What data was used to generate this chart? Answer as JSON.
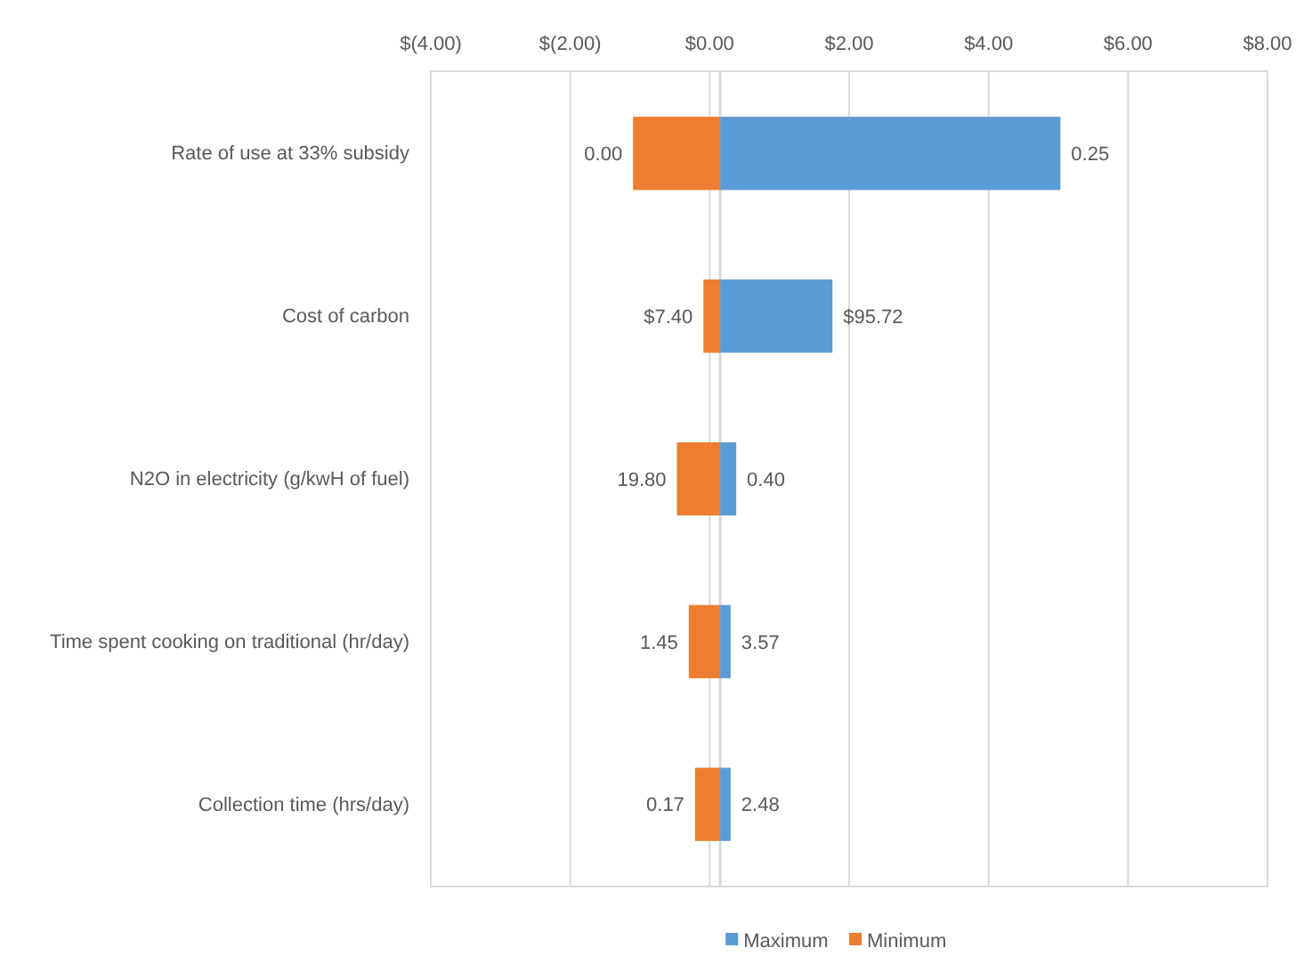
{
  "chart_data": {
    "type": "bar",
    "orientation": "horizontal",
    "categories": [
      "Rate of use at 33% subsidy",
      "Cost of carbon",
      "N2O in electricity (g/kwH of fuel)",
      "Time spent cooking on traditional (hr/day)",
      "Collection time (hrs/day)"
    ],
    "series": [
      {
        "name": "Maximum",
        "color": "#5b9bd5",
        "values": [
          4.88,
          1.61,
          0.23,
          0.15,
          0.15
        ],
        "base": [
          0.15,
          0.15,
          0.15,
          0.15,
          0.15
        ]
      },
      {
        "name": "Minimum",
        "color": "#ed7d31",
        "values": [
          -1.25,
          -0.24,
          -0.62,
          -0.45,
          -0.36
        ],
        "base": [
          0.15,
          0.15,
          0.15,
          0.15,
          0.15
        ]
      }
    ],
    "annotations": [
      {
        "text": "0.25",
        "x": 5.03,
        "y": "Rate of use at 33% subsidy"
      },
      {
        "text": "$95.72",
        "x": 1.76,
        "y": "Cost of carbon"
      },
      {
        "text": "0.40",
        "x": 0.38,
        "y": "N2O in electricity (g/kwH of fuel)"
      },
      {
        "text": "3.57",
        "x": 0.3,
        "y": "Time spent cooking on traditional (hr/day)"
      },
      {
        "text": "2.48",
        "x": 0.3,
        "y": "Collection time (hrs/day)"
      },
      {
        "text": "0.00",
        "x": -1.1,
        "y": "Rate of use at 33% subsidy"
      },
      {
        "text": "$7.40",
        "x": -0.09,
        "y": "Cost of carbon"
      },
      {
        "text": "19.80",
        "x": -0.47,
        "y": "N2O in electricity (g/kwH of fuel)"
      },
      {
        "text": "1.45",
        "x": -0.3,
        "y": "Time spent cooking on traditional (hr/day)"
      },
      {
        "text": "0.17",
        "x": -0.21,
        "y": "Collection time (hrs/day)"
      }
    ],
    "xlim": [
      -4,
      8
    ],
    "xticks": [
      {
        "value": -4,
        "label": "$(4.00)"
      },
      {
        "value": -2,
        "label": "$(2.00)"
      },
      {
        "value": 0,
        "label": "$0.00"
      },
      {
        "value": 2,
        "label": "$2.00"
      },
      {
        "value": 4,
        "label": "$4.00"
      },
      {
        "value": 6,
        "label": "$6.00"
      },
      {
        "value": 8,
        "label": "$8.00"
      }
    ],
    "ref_lines": [
      {
        "axis": "x",
        "value": 0.15,
        "color": "#d9d9d9"
      }
    ],
    "grid": "x",
    "legend": "bottom"
  }
}
